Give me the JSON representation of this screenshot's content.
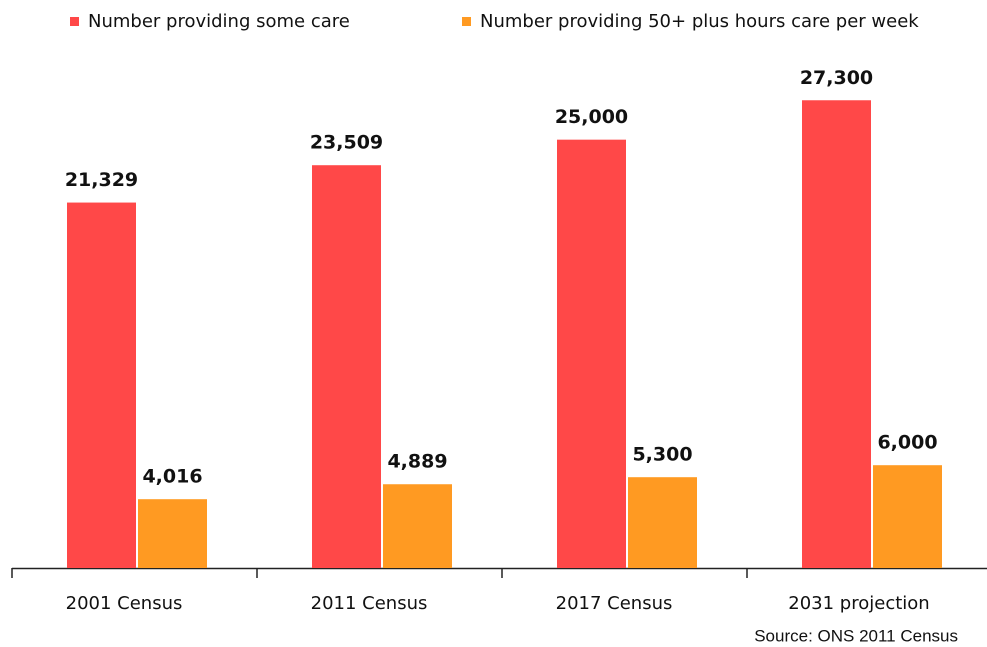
{
  "chart_data": {
    "type": "bar",
    "categories": [
      "2001 Census",
      "2011 Census",
      "2017 Census",
      "2031 projection"
    ],
    "series": [
      {
        "name": "Number providing some care",
        "color": "#ff4848",
        "values": [
          21329,
          23509,
          25000,
          27300
        ],
        "value_labels": [
          "21,329",
          "23,509",
          "25,000",
          "27,300"
        ]
      },
      {
        "name": "Number providing 50+ plus hours care per week",
        "color": "#ff9a22",
        "values": [
          4016,
          4889,
          5300,
          6000
        ],
        "value_labels": [
          "4,016",
          "4,889",
          "5,300",
          "6,000"
        ]
      }
    ],
    "ylim": [
      0,
      30000
    ],
    "source": "Source: ONS 2011 Census"
  }
}
